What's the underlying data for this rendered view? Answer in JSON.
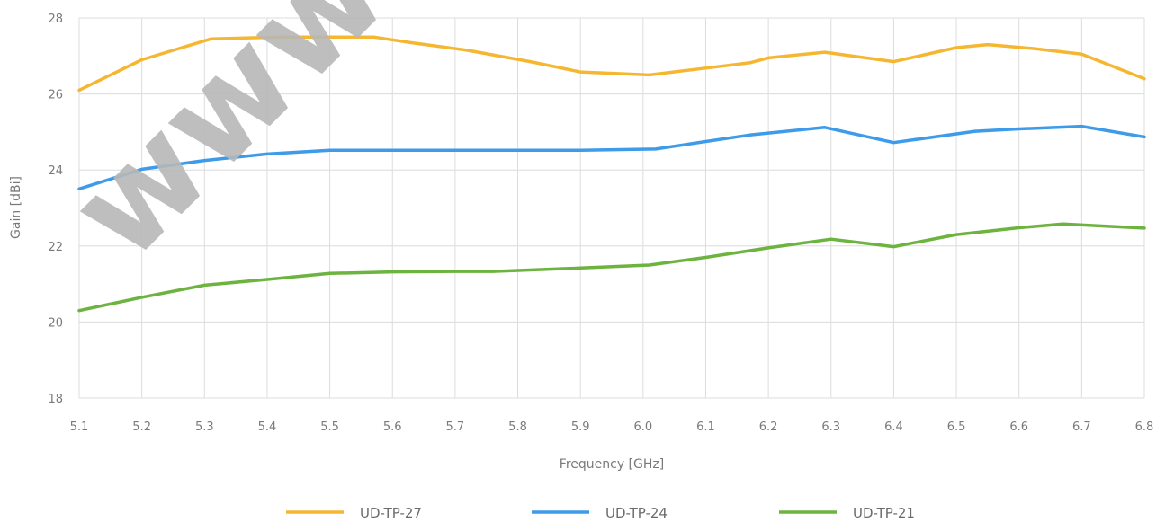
{
  "watermark": "www",
  "chart_data": {
    "type": "line",
    "xlabel": "Frequency [GHz]",
    "ylabel": "Gain [dBi]",
    "xlim": [
      5.1,
      6.8
    ],
    "ylim": [
      18,
      28
    ],
    "xticks": [
      "5.1",
      "5.2",
      "5.3",
      "5.4",
      "5.5",
      "5.6",
      "5.7",
      "5.8",
      "5.9",
      "6.0",
      "6.1",
      "6.2",
      "6.3",
      "6.4",
      "6.5",
      "6.6",
      "6.7",
      "6.8"
    ],
    "yticks": [
      "18",
      "20",
      "22",
      "24",
      "26",
      "28"
    ],
    "grid": true,
    "legend_position": "bottom",
    "series": [
      {
        "name": "UD-TP-27",
        "color": "#f5b731",
        "x": [
          5.1,
          5.2,
          5.31,
          5.42,
          5.51,
          5.57,
          5.63,
          5.72,
          5.82,
          5.9,
          6.01,
          6.1,
          6.17,
          6.2,
          6.29,
          6.4,
          6.5,
          6.55,
          6.62,
          6.7,
          6.8
        ],
        "y": [
          26.1,
          26.9,
          27.45,
          27.5,
          27.5,
          27.5,
          27.35,
          27.15,
          26.85,
          26.58,
          26.5,
          26.68,
          26.82,
          26.95,
          27.1,
          26.85,
          27.22,
          27.3,
          27.2,
          27.05,
          26.4
        ]
      },
      {
        "name": "UD-TP-24",
        "color": "#3d9be9",
        "x": [
          5.1,
          5.2,
          5.3,
          5.4,
          5.5,
          5.6,
          5.7,
          5.8,
          5.9,
          6.02,
          6.1,
          6.17,
          6.29,
          6.4,
          6.53,
          6.6,
          6.7,
          6.8
        ],
        "y": [
          23.5,
          24.02,
          24.25,
          24.42,
          24.52,
          24.52,
          24.52,
          24.52,
          24.52,
          24.55,
          24.75,
          24.92,
          25.12,
          24.72,
          25.02,
          25.08,
          25.15,
          24.87
        ]
      },
      {
        "name": "UD-TP-21",
        "color": "#6cb33f",
        "x": [
          5.1,
          5.2,
          5.3,
          5.4,
          5.5,
          5.6,
          5.7,
          5.76,
          5.9,
          6.01,
          6.1,
          6.2,
          6.3,
          6.4,
          6.5,
          6.6,
          6.67,
          6.8
        ],
        "y": [
          20.3,
          20.65,
          20.97,
          21.12,
          21.28,
          21.32,
          21.33,
          21.33,
          21.42,
          21.5,
          21.7,
          21.95,
          22.18,
          21.98,
          22.3,
          22.48,
          22.58,
          22.47
        ]
      }
    ]
  }
}
